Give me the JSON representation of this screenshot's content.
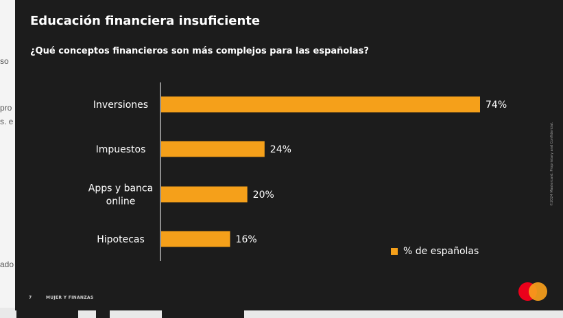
{
  "background_page": {
    "fragments": [
      "so",
      "pro",
      "s. e",
      "ado"
    ]
  },
  "slide": {
    "title": "Educación financiera insuficiente",
    "subtitle": "¿Qué conceptos financieros son más complejos para las españolas?",
    "footer_page_number": "7",
    "footer_label": "MUJER Y FINANZAS",
    "copyright": "©2024 Mastercard. Proprietary and Confidential.",
    "logo_icon": "mastercard-logo",
    "colors": {
      "background": "#1c1c1c",
      "bar": "#f5a01a",
      "text": "#ffffff"
    }
  },
  "chart_data": {
    "type": "bar",
    "orientation": "horizontal",
    "categories": [
      "Inversiones",
      "Impuestos",
      "Apps y banca online",
      "Hipotecas"
    ],
    "category_lines": [
      [
        "Inversiones"
      ],
      [
        "Impuestos"
      ],
      [
        "Apps y banca",
        "online"
      ],
      [
        "Hipotecas"
      ]
    ],
    "series": [
      {
        "name": "% de españolas",
        "values": [
          74,
          24,
          20,
          16
        ]
      }
    ],
    "data_labels": [
      "74%",
      "24%",
      "20%",
      "16%"
    ],
    "xlim": [
      0,
      74
    ],
    "grid": false,
    "legend_position": "bottom-right"
  }
}
